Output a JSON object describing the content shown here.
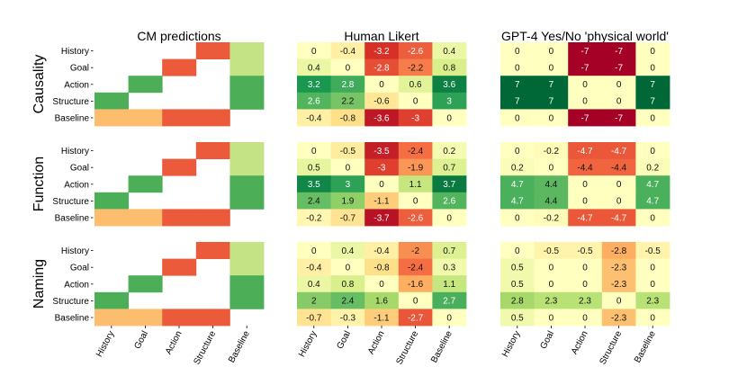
{
  "chart_data": {
    "type": "heatmap",
    "rows": [
      "History",
      "Goal",
      "Action",
      "Structure",
      "Baseline"
    ],
    "cols": [
      "History",
      "Goal",
      "Action",
      "Structure",
      "Baseline"
    ],
    "panel_titles": [
      "CM predictions",
      "Human Likert",
      "GPT-4 Yes/No 'physical world'"
    ],
    "groups": [
      "Causality",
      "Function",
      "Naming"
    ],
    "cm_predictions": [
      [
        [
          null,
          null,
          null,
          "red",
          "lightgreen"
        ],
        [
          null,
          null,
          "red",
          null,
          "lightgreen"
        ],
        [
          null,
          "green",
          null,
          null,
          "green"
        ],
        [
          "green",
          null,
          null,
          null,
          "green"
        ],
        [
          "orange",
          "orange",
          "red",
          "red",
          null
        ]
      ],
      [
        [
          null,
          null,
          null,
          "red",
          "lightgreen"
        ],
        [
          null,
          null,
          "red",
          null,
          "lightgreen"
        ],
        [
          null,
          "green",
          null,
          null,
          "green"
        ],
        [
          "green",
          null,
          null,
          null,
          "green"
        ],
        [
          "orange",
          "orange",
          "red",
          "red",
          null
        ]
      ],
      [
        [
          null,
          null,
          null,
          "red",
          "lightgreen"
        ],
        [
          null,
          null,
          "red",
          null,
          "lightgreen"
        ],
        [
          null,
          "green",
          null,
          null,
          "green"
        ],
        [
          "green",
          null,
          null,
          null,
          "green"
        ],
        [
          "orange",
          "orange",
          "red",
          "red",
          null
        ]
      ]
    ],
    "human_likert": [
      [
        [
          0,
          -0.4,
          -3.2,
          -2.6,
          0.4
        ],
        [
          0.4,
          0,
          -2.8,
          -2.2,
          0.8
        ],
        [
          3.2,
          2.8,
          0,
          0.6,
          3.6
        ],
        [
          2.6,
          2.2,
          -0.6,
          0,
          3
        ],
        [
          -0.4,
          -0.8,
          -3.6,
          -3,
          0
        ]
      ],
      [
        [
          0,
          -0.5,
          -3.5,
          -2.4,
          0.2
        ],
        [
          0.5,
          0,
          -3,
          -1.9,
          0.7
        ],
        [
          3.5,
          3,
          0,
          1.1,
          3.7
        ],
        [
          2.4,
          1.9,
          -1.1,
          0,
          2.6
        ],
        [
          -0.2,
          -0.7,
          -3.7,
          -2.6,
          0
        ]
      ],
      [
        [
          0,
          0.4,
          -0.4,
          -2,
          0.7
        ],
        [
          -0.4,
          0,
          -0.8,
          -2.4,
          0.3
        ],
        [
          0.4,
          0.8,
          0,
          -1.6,
          1.1
        ],
        [
          2,
          2.4,
          1.6,
          0,
          2.7
        ],
        [
          -0.7,
          -0.3,
          -1.1,
          -2.7,
          0
        ]
      ]
    ],
    "gpt4_yes_no": [
      [
        [
          0,
          0,
          -7,
          -7,
          0
        ],
        [
          0,
          0,
          -7,
          -7,
          0
        ],
        [
          7,
          7,
          0,
          0,
          7
        ],
        [
          7,
          7,
          0,
          0,
          7
        ],
        [
          0,
          0,
          -7,
          -7,
          0
        ]
      ],
      [
        [
          0,
          -0.2,
          -4.7,
          -4.7,
          0
        ],
        [
          0.2,
          0,
          -4.4,
          -4.4,
          0.2
        ],
        [
          4.7,
          4.4,
          0,
          0,
          4.7
        ],
        [
          4.7,
          4.4,
          0,
          0,
          4.7
        ],
        [
          0,
          -0.2,
          -4.7,
          -4.7,
          0
        ]
      ],
      [
        [
          0,
          -0.5,
          -0.5,
          -2.8,
          -0.5
        ],
        [
          0.5,
          0,
          0,
          -2.3,
          0
        ],
        [
          0.5,
          0,
          0,
          -2.3,
          0
        ],
        [
          2.8,
          2.3,
          2.3,
          0,
          2.3
        ],
        [
          0.5,
          0,
          0,
          -2.3,
          0
        ]
      ]
    ],
    "human_range": [
      -4,
      4
    ],
    "gpt_range": [
      -7,
      7
    ],
    "colors": {
      "green": "#4caf58",
      "lightgreen": "#c3e384",
      "red": "#ec5a3c",
      "orange": "#fdbd6e",
      "diverging": [
        "#a50026",
        "#d73027",
        "#f46d43",
        "#fdae61",
        "#fee08b",
        "#ffffbf",
        "#d9ef8b",
        "#a6d96a",
        "#66bd63",
        "#1a9850",
        "#006837"
      ]
    }
  }
}
